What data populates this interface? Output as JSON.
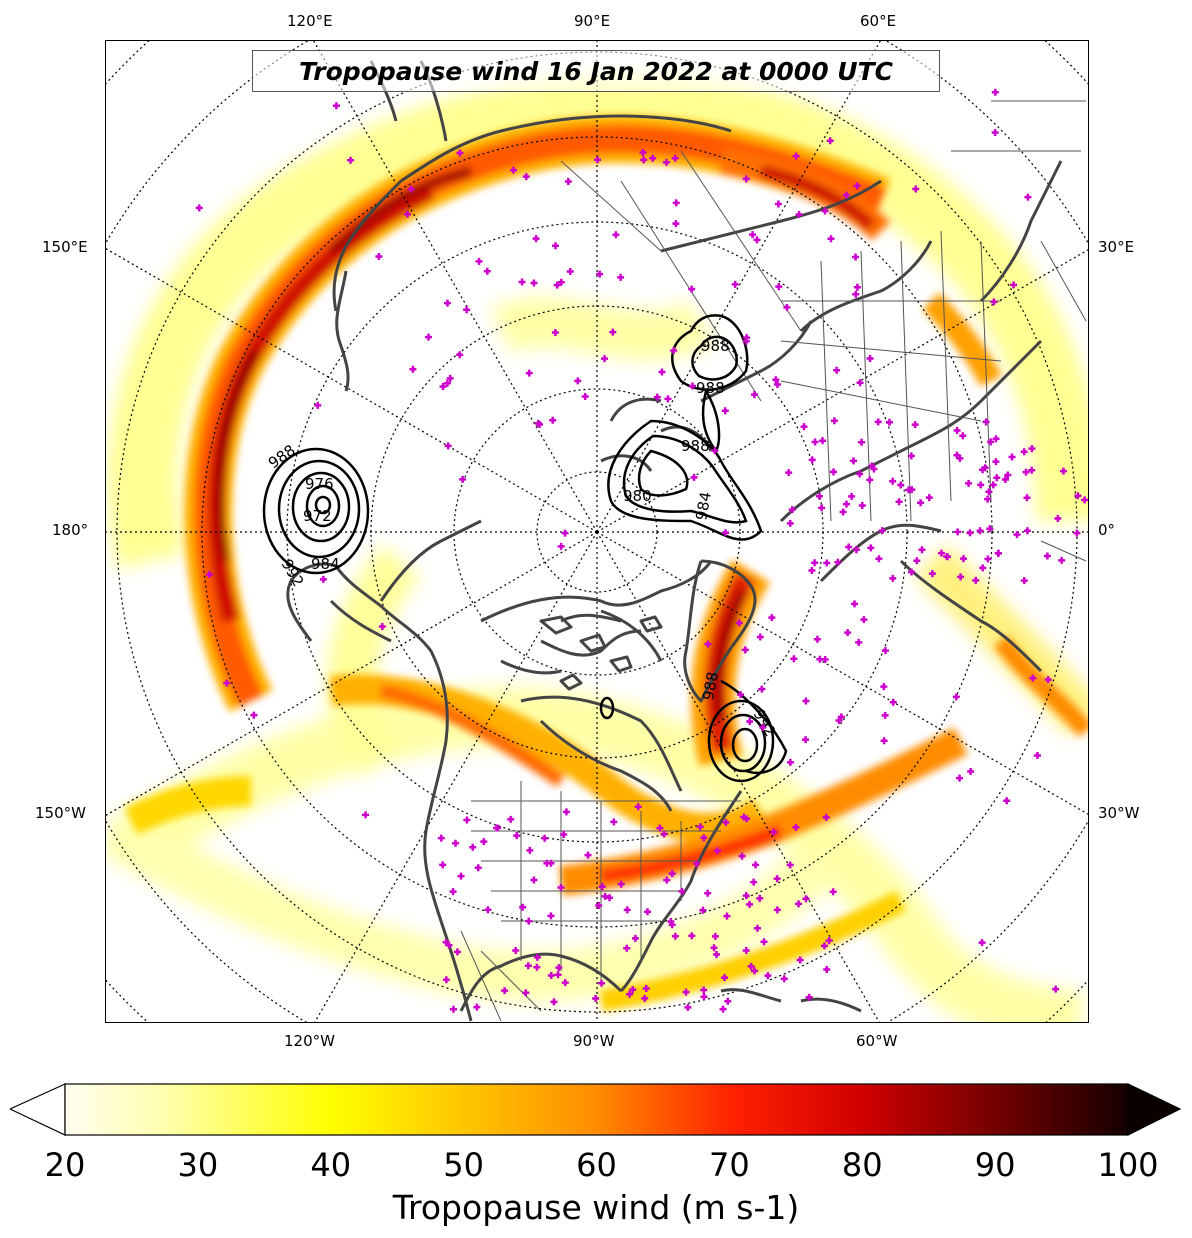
{
  "title": "Tropopause wind 16 Jan 2022 at 0000 UTC",
  "longitude_labels": {
    "top": [
      "120°E",
      "90°E",
      "60°E"
    ],
    "left": [
      "150°E",
      "180°",
      "150°W"
    ],
    "right": [
      "30°E",
      "0°",
      "30°W"
    ],
    "bottom": [
      "120°W",
      "90°W",
      "60°W"
    ]
  },
  "colorbar": {
    "label": "Tropopause wind (m s-1)",
    "min": 20,
    "max": 100,
    "ticks": [
      "20",
      "30",
      "40",
      "50",
      "60",
      "70",
      "80",
      "90",
      "100"
    ],
    "extend": "both",
    "colormap": "hot_r",
    "colors": [
      "#fffef0",
      "#ffff99",
      "#ffff00",
      "#ffd700",
      "#ffa500",
      "#ff6600",
      "#ff0000",
      "#cc0000",
      "#800000",
      "#1a0000"
    ]
  },
  "contours": {
    "color": "#000000",
    "labels": [
      "988",
      "984",
      "980",
      "976",
      "972",
      "992"
    ]
  },
  "station_marker_color": "#cc00cc",
  "coastline_color": "#444444"
}
